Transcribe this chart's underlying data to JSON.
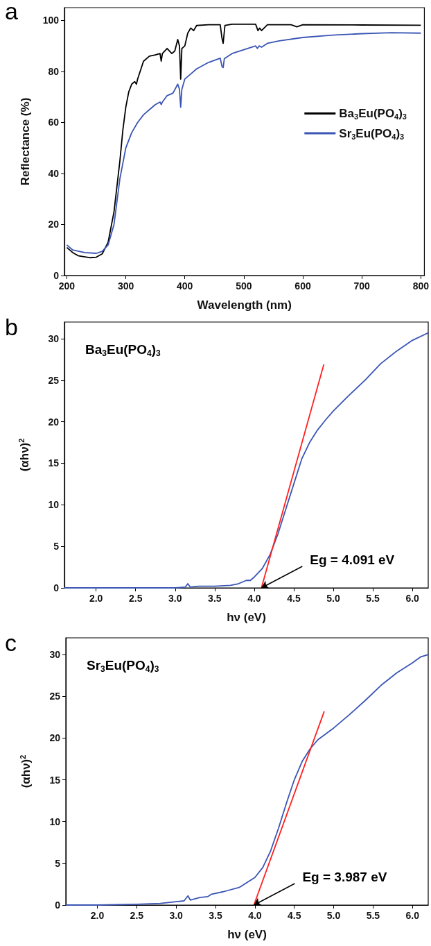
{
  "chart_data": [
    {
      "type": "line",
      "title": "a",
      "xlabel": "Wavelength (nm)",
      "ylabel": "Reflectance (%)",
      "xlim": [
        196,
        806
      ],
      "ylim": [
        0,
        105
      ],
      "xticks": [
        200,
        300,
        400,
        500,
        600,
        700,
        800
      ],
      "yticks": [
        0,
        20,
        40,
        60,
        80,
        100
      ],
      "legend": "right",
      "series": [
        {
          "name": "Ba$_{3}$Eu(PO$_{4}$)$_{3}$",
          "color": "#000000",
          "x": [
            200,
            210,
            220,
            240,
            250,
            260,
            270,
            280,
            290,
            295,
            300,
            305,
            310,
            315,
            318,
            320,
            330,
            340,
            350,
            358,
            360,
            362,
            370,
            378,
            383,
            388,
            391,
            393,
            395,
            400,
            405,
            410,
            415,
            420,
            440,
            460,
            463,
            465,
            468,
            480,
            520,
            524,
            527,
            530,
            540,
            580,
            590,
            600,
            700,
            800
          ],
          "values": [
            11,
            9,
            7.7,
            7,
            7.2,
            8.5,
            13,
            25,
            45,
            57,
            66,
            72,
            75,
            76,
            75,
            77,
            84,
            86,
            86.5,
            87,
            84,
            87,
            89,
            87,
            88,
            92.5,
            90,
            77,
            89,
            90,
            95,
            97,
            96,
            98,
            98.3,
            98.3,
            93,
            91,
            98,
            98.5,
            98.5,
            96,
            97,
            96,
            98.3,
            98.3,
            97.5,
            98.3,
            98.2,
            98.1
          ]
        },
        {
          "name": "Sr$_{3}$Eu(PO$_{4}$)$_{3}$",
          "color": "#3a55b4",
          "x": [
            200,
            210,
            230,
            250,
            260,
            270,
            280,
            290,
            300,
            310,
            320,
            330,
            340,
            350,
            358,
            360,
            362,
            370,
            380,
            388,
            391,
            393,
            395,
            400,
            410,
            420,
            440,
            460,
            463,
            465,
            467,
            480,
            500,
            520,
            523,
            526,
            530,
            540,
            560,
            600,
            650,
            700,
            750,
            800
          ],
          "values": [
            12,
            10,
            9,
            8.7,
            9.5,
            12,
            20,
            38,
            50,
            56,
            60,
            63,
            65,
            67,
            68,
            67,
            68,
            70.5,
            71.5,
            75,
            73,
            66,
            73,
            77,
            79,
            81,
            83.5,
            85.2,
            82,
            81.5,
            85,
            87,
            88.5,
            90,
            89,
            90,
            89.5,
            91,
            92,
            93.3,
            94.2,
            94.8,
            95.2,
            95
          ]
        }
      ]
    },
    {
      "type": "line",
      "title": "b",
      "xlabel": "hν (eV)",
      "ylabel": "(αhν)$^{2}$",
      "xlim": [
        1.6,
        6.2
      ],
      "ylim": [
        0,
        32
      ],
      "xticks": [
        {
          "value": 2,
          "label": "2.0"
        },
        2.5,
        {
          "value": 3,
          "label": "3.0"
        },
        3.5,
        {
          "value": 4,
          "label": "4.0"
        },
        4.5,
        {
          "value": 5,
          "label": "5.0"
        },
        5.5,
        {
          "value": 6,
          "label": "6.0"
        }
      ],
      "yticks": [
        0,
        5,
        10,
        15,
        20,
        25,
        30
      ],
      "annotations": [
        "Ba$_{3}$Eu(PO$_{4}$)$_{3}$",
        {
          "text": "Eg = 4.091 eV",
          "x": 4.091,
          "y": 0
        }
      ],
      "series": [
        {
          "color": "#3a55b4",
          "x": [
            1.6,
            2.5,
            3.0,
            3.13,
            3.16,
            3.19,
            3.3,
            3.5,
            3.7,
            3.8,
            3.9,
            3.95,
            4.0,
            4.1,
            4.2,
            4.3,
            4.4,
            4.5,
            4.6,
            4.7,
            4.8,
            4.9,
            5.0,
            5.2,
            5.4,
            5.6,
            5.8,
            6.0,
            6.2
          ],
          "values": [
            0,
            0,
            0,
            0.1,
            0.5,
            0.1,
            0.2,
            0.2,
            0.3,
            0.5,
            0.9,
            0.9,
            1.3,
            2.3,
            4,
            6.5,
            9.5,
            12.5,
            15.5,
            17.5,
            19,
            20.2,
            21.3,
            23.2,
            25,
            27,
            28.5,
            29.8,
            30.7
          ]
        },
        {
          "type": "line",
          "color": "#ff2020",
          "x": [
            4.091,
            4.88
          ],
          "values": [
            0,
            26.9
          ]
        }
      ]
    },
    {
      "type": "line",
      "title": "c",
      "xlabel": "hν (eV)",
      "ylabel": "(αhν)$^{2}$",
      "xlim": [
        1.6,
        6.2
      ],
      "ylim": [
        0,
        32
      ],
      "xticks": [
        {
          "value": 2,
          "label": "2.0"
        },
        2.5,
        {
          "value": 3,
          "label": "3.0"
        },
        3.5,
        {
          "value": 4,
          "label": "4.0"
        },
        4.5,
        {
          "value": 5,
          "label": "5.0"
        },
        5.5,
        {
          "value": 6,
          "label": "6.0"
        }
      ],
      "yticks": [
        0,
        5,
        10,
        15,
        20,
        25,
        30
      ],
      "annotations": [
        "Sr$_{3}$Eu(PO$_{4}$)$_{3}$",
        {
          "text": "Eg = 3.987 eV",
          "x": 3.987,
          "y": 0
        }
      ],
      "series": [
        {
          "color": "#3a55b4",
          "x": [
            1.6,
            2.0,
            2.5,
            2.8,
            3.0,
            3.1,
            3.15,
            3.18,
            3.3,
            3.4,
            3.45,
            3.6,
            3.8,
            3.9,
            4.0,
            4.1,
            4.2,
            4.3,
            4.4,
            4.5,
            4.6,
            4.7,
            4.8,
            5.0,
            5.2,
            5.4,
            5.6,
            5.8,
            6.0,
            6.1,
            6.2
          ],
          "values": [
            0,
            0,
            0.1,
            0.2,
            0.4,
            0.5,
            1.1,
            0.6,
            0.9,
            1.0,
            1.3,
            1.6,
            2.1,
            2.7,
            3.3,
            4.5,
            6.5,
            9.2,
            12.2,
            15,
            17.2,
            18.7,
            19.8,
            21.2,
            22.8,
            24.5,
            26.3,
            27.8,
            29,
            29.7,
            30
          ]
        },
        {
          "type": "line",
          "color": "#ff2020",
          "x": [
            3.987,
            4.88
          ],
          "values": [
            0,
            23.2
          ]
        }
      ]
    }
  ]
}
